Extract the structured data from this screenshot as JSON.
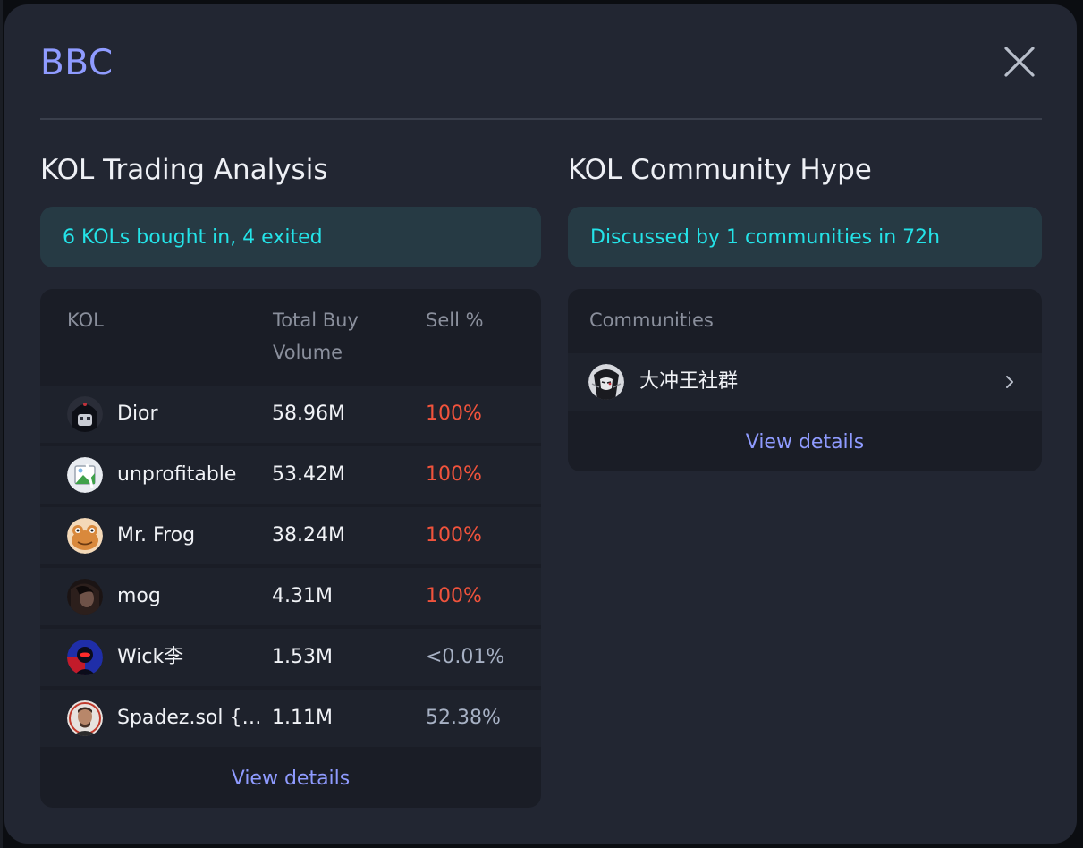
{
  "modal": {
    "title": "BBC"
  },
  "trading": {
    "title": "KOL Trading Analysis",
    "summary": "6 KOLs bought in, 4 exited",
    "columns": {
      "kol": "KOL",
      "volume_line1": "Total Buy",
      "volume_line2": "Volume",
      "sell": "Sell %"
    },
    "rows": [
      {
        "name": "Dior",
        "volume": "58.96M",
        "sell": "100%",
        "sell_status": "red",
        "avatar_icon": "dark-hooded-avatar-icon"
      },
      {
        "name": "unprofitable",
        "volume": "53.42M",
        "sell": "100%",
        "sell_status": "red",
        "avatar_icon": "broken-image-icon"
      },
      {
        "name": "Mr. Frog",
        "volume": "38.24M",
        "sell": "100%",
        "sell_status": "red",
        "avatar_icon": "frog-avatar-icon"
      },
      {
        "name": "mog",
        "volume": "4.31M",
        "sell": "100%",
        "sell_status": "red",
        "avatar_icon": "dark-portrait-avatar-icon"
      },
      {
        "name": "Wick李",
        "volume": "1.53M",
        "sell": "<0.01%",
        "sell_status": "gray",
        "avatar_icon": "red-blue-avatar-icon"
      },
      {
        "name": "Spadez.sol {…",
        "volume": "1.11M",
        "sell": "52.38%",
        "sell_status": "gray",
        "avatar_icon": "portrait-avatar-icon"
      }
    ],
    "view_details": "View details"
  },
  "community": {
    "title": "KOL Community Hype",
    "summary": "Discussed by 1 communities in 72h",
    "column": "Communities",
    "rows": [
      {
        "name": "大冲王社群",
        "avatar_icon": "masked-figure-avatar-icon"
      }
    ],
    "view_details": "View details"
  },
  "colors": {
    "accent": "#8f9bff",
    "summary_text": "#24e3e8",
    "sell_red": "#f0533c",
    "sell_gray": "#a7b1c4"
  }
}
